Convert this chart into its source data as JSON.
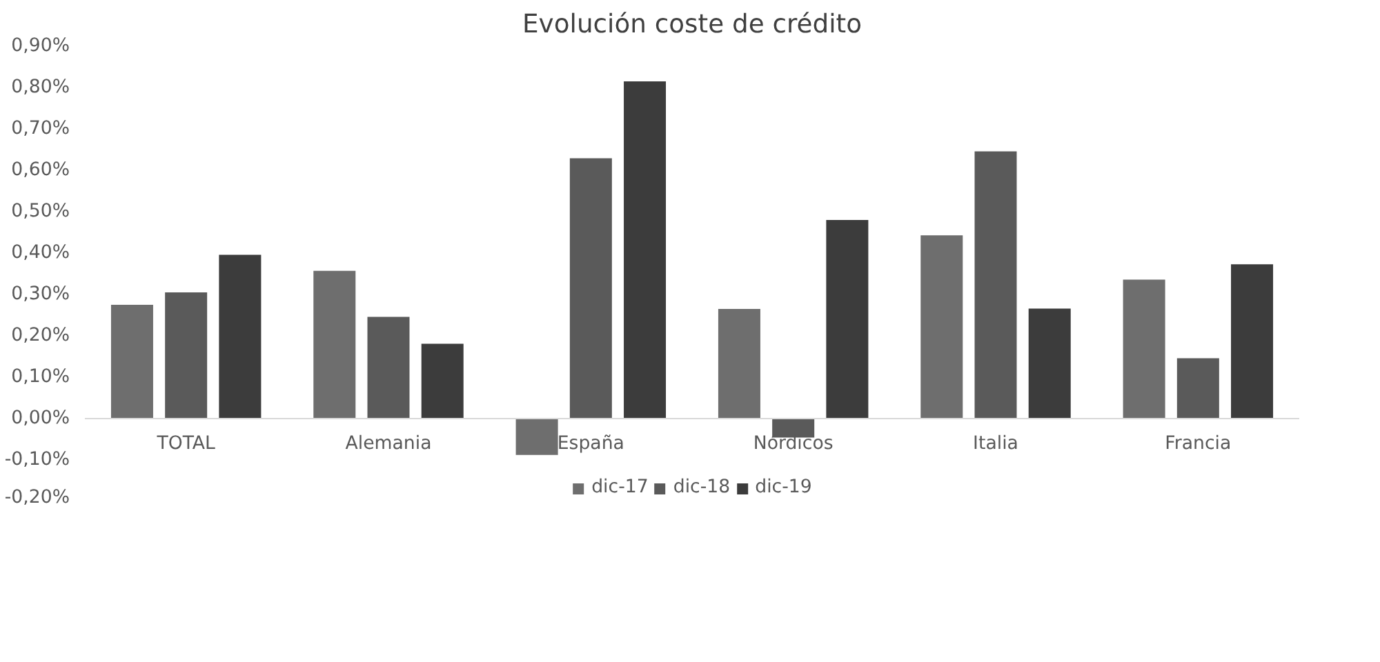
{
  "chart_data": {
    "type": "bar",
    "title": "Evolución coste de crédito",
    "categories": [
      "TOTAL",
      "Alemania",
      "España",
      "Nórdicos",
      "Italia",
      "Francia"
    ],
    "series": [
      {
        "name": "dic-17",
        "color": "#6e6e6e",
        "values": [
          0.275,
          0.357,
          -0.088,
          0.265,
          0.443,
          0.336
        ]
      },
      {
        "name": "dic-18",
        "color": "#5a5a5a",
        "values": [
          0.305,
          0.246,
          0.629,
          -0.046,
          0.646,
          0.146
        ]
      },
      {
        "name": "dic-19",
        "color": "#3c3c3c",
        "values": [
          0.396,
          0.181,
          0.815,
          0.48,
          0.266,
          0.373
        ]
      }
    ],
    "ylim": [
      -0.2,
      0.9
    ],
    "yticks": [
      {
        "value": -0.2,
        "label": "-0,20%"
      },
      {
        "value": -0.1,
        "label": "-0,10%"
      },
      {
        "value": 0,
        "label": "0,00%"
      },
      {
        "value": 0.1,
        "label": "0,10%"
      },
      {
        "value": 0.2,
        "label": "0,20%"
      },
      {
        "value": 0.3,
        "label": "0,30%"
      },
      {
        "value": 0.4,
        "label": "0,40%"
      },
      {
        "value": 0.5,
        "label": "0,50%"
      },
      {
        "value": 0.6,
        "label": "0,60%"
      },
      {
        "value": 0.7,
        "label": "0,70%"
      },
      {
        "value": 0.8,
        "label": "0,80%"
      },
      {
        "value": 0.9,
        "label": "0,90%"
      }
    ],
    "grid": false,
    "legend": "bottom"
  }
}
